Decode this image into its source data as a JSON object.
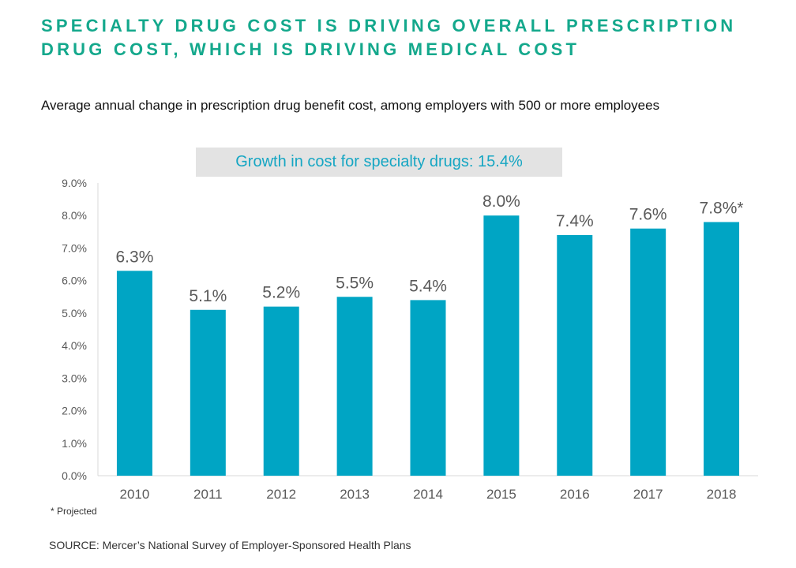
{
  "header": {
    "title": "SPECIALTY DRUG COST IS DRIVING OVERALL PRESCRIPTION DRUG COST, WHICH IS DRIVING MEDICAL COST",
    "subtitle": "Average annual change in prescription drug benefit cost, among employers with 500 or more employees"
  },
  "callout": {
    "text": "Growth in cost for specialty drugs: 15.4%"
  },
  "footnote": "* Projected",
  "source": "SOURCE:  Mercer’s National Survey of Employer-Sponsored Health Plans",
  "colors": {
    "bar": "#00a5c4",
    "title": "#14a88c",
    "callout_text": "#16a6c3"
  },
  "chart_data": {
    "type": "bar",
    "categories": [
      "2010",
      "2011",
      "2012",
      "2013",
      "2014",
      "2015",
      "2016",
      "2017",
      "2018"
    ],
    "values": [
      6.3,
      5.1,
      5.2,
      5.5,
      5.4,
      8.0,
      7.4,
      7.6,
      7.8
    ],
    "data_labels": [
      "6.3%",
      "5.1%",
      "5.2%",
      "5.5%",
      "5.4%",
      "8.0%",
      "7.4%",
      "7.6%",
      "7.8%*"
    ],
    "y_ticks": [
      "0.0%",
      "1.0%",
      "2.0%",
      "3.0%",
      "4.0%",
      "5.0%",
      "6.0%",
      "7.0%",
      "8.0%",
      "9.0%"
    ],
    "ylim": [
      0,
      9
    ],
    "xlabel": "",
    "ylabel": "",
    "grid": false,
    "legend": "none"
  }
}
